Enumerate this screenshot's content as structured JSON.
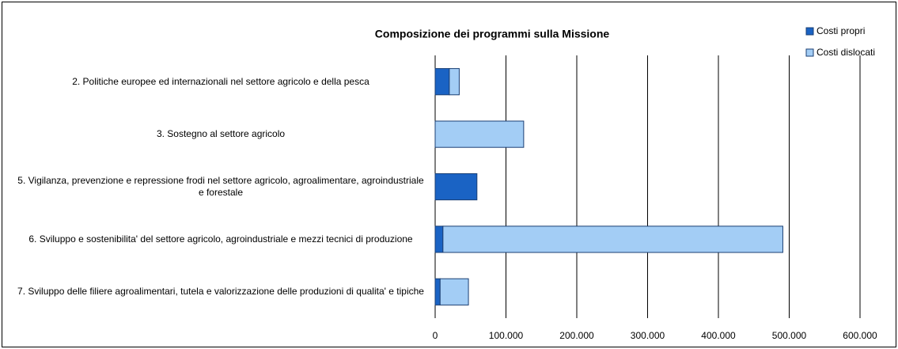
{
  "chart_data": {
    "type": "barh_stacked",
    "title": "Composizione dei programmi sulla Missione",
    "categories": [
      "2. Politiche europee ed internazionali nel settore agricolo e della pesca",
      "3. Sostegno al settore agricolo",
      "5. Vigilanza,  prevenzione e repressione frodi nel settore agricolo, agroalimentare, agroindustriale e forestale",
      "6. Sviluppo e sostenibilita' del settore agricolo, agroindustriale e mezzi tecnici di produzione",
      "7. Sviluppo delle filiere agroalimentari, tutela  e valorizzazione delle produzioni di qualita' e tipiche"
    ],
    "series": [
      {
        "name": "Costi propri",
        "color": "#1a63c4",
        "values": [
          20000,
          0,
          59000,
          11000,
          7000
        ]
      },
      {
        "name": "Costi dislocati",
        "color": "#a3cdf5",
        "values": [
          14000,
          125000,
          0,
          480000,
          40000
        ]
      }
    ],
    "xlim": [
      0,
      600000
    ],
    "xticks": [
      0,
      {
        "value": 100000,
        "label": "100.000"
      },
      {
        "value": 200000,
        "label": "200.000"
      },
      {
        "value": 300000,
        "label": "300.000"
      },
      {
        "value": 400000,
        "label": "400.000"
      },
      {
        "value": 500000,
        "label": "500.000"
      },
      {
        "value": 600000,
        "label": "600.000"
      }
    ],
    "grid": true,
    "legend": "top-right"
  }
}
